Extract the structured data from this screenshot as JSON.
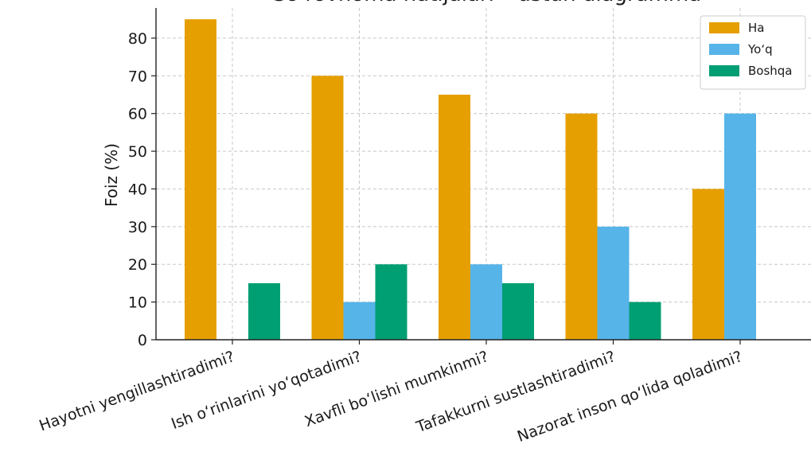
{
  "chart_data": {
    "type": "bar",
    "title": "So‘rovnoma natijalari – ustun diagramma",
    "xlabel": "",
    "ylabel": "Foiz (%)",
    "ylim": [
      0,
      88
    ],
    "yticks": [
      0,
      10,
      20,
      30,
      40,
      50,
      60,
      70,
      80
    ],
    "grid": true,
    "legend_position": "top-right",
    "categories": [
      "Hayotni yengillashtiradimi?",
      "Ish o‘rinlarini yo‘qotadimi?",
      "Xavfli bo‘lishi mumkinmi?",
      "Tafakkurni sustlashtiradimi?",
      "Nazorat inson qo‘lida qoladimi?"
    ],
    "series": [
      {
        "name": "Ha",
        "color": "#E69F00",
        "values": [
          85,
          70,
          65,
          60,
          40
        ]
      },
      {
        "name": "Yo‘q",
        "color": "#56B4E9",
        "values": [
          0,
          10,
          20,
          30,
          60
        ]
      },
      {
        "name": "Boshqa",
        "color": "#009E73",
        "values": [
          15,
          20,
          15,
          10,
          0
        ]
      }
    ]
  }
}
